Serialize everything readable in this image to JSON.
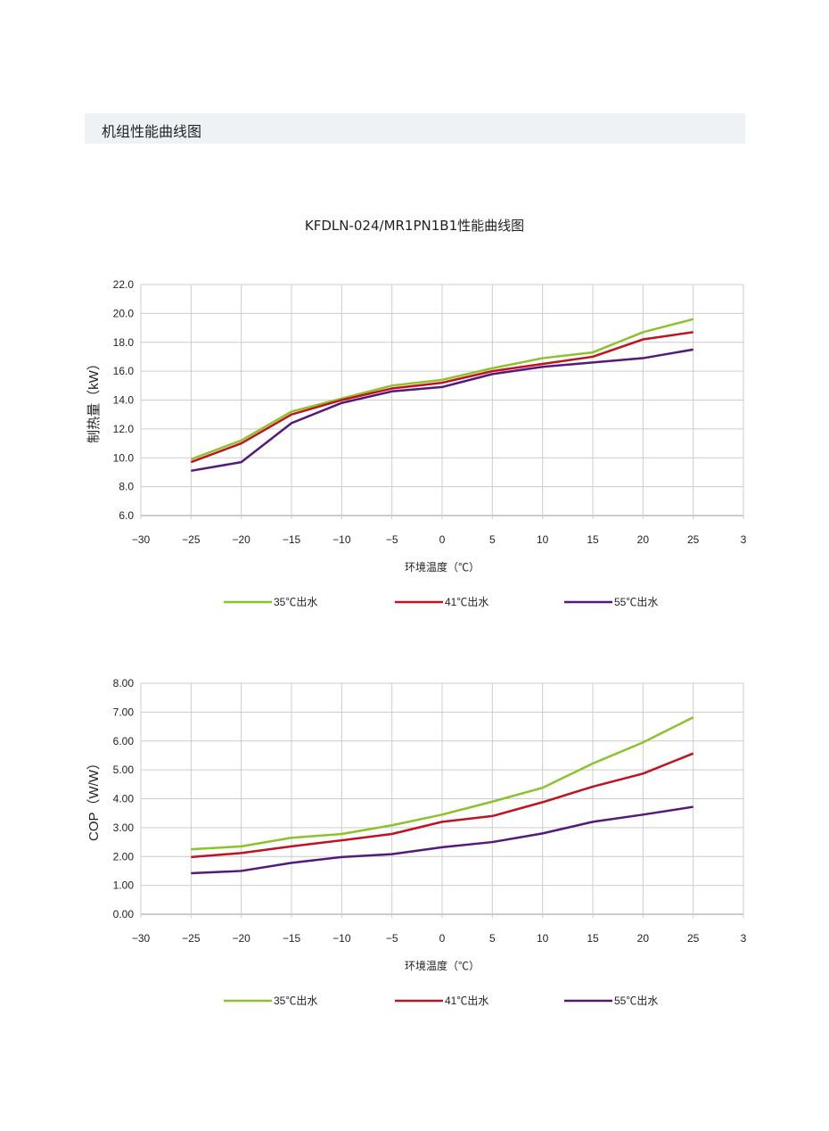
{
  "header": {
    "title": "机组性能曲线图"
  },
  "page_title": "KFDLN-024/MR1PN1B1性能曲线图",
  "chart_data": [
    {
      "type": "line",
      "ylabel": "制热量（kW）",
      "xlabel": "环境温度（℃）",
      "xlim": [
        -30,
        30
      ],
      "ylim": [
        6,
        22
      ],
      "x_tick_labels": [
        "−30",
        "−25",
        "−20",
        "−15",
        "−10",
        "−5",
        "0",
        "5",
        "10",
        "15",
        "20",
        "25",
        "3"
      ],
      "y_ticks": [
        6,
        8,
        10,
        12,
        14,
        16,
        18,
        20,
        22
      ],
      "y_tick_labels": [
        "6.0",
        "8.0",
        "10.0",
        "12.0",
        "14.0",
        "16.0",
        "18.0",
        "20.0",
        "22.0"
      ],
      "grid": true,
      "legend": "bottom",
      "x": [
        -25,
        -20,
        -15,
        -10,
        -5,
        0,
        5,
        10,
        15,
        20,
        25
      ],
      "series": [
        {
          "name": "35℃出水",
          "color": "#8cc22a",
          "values": [
            9.9,
            11.2,
            13.2,
            14.1,
            15.0,
            15.4,
            16.2,
            16.9,
            17.3,
            18.7,
            19.6
          ]
        },
        {
          "name": "41℃出水",
          "color": "#c0121f",
          "values": [
            9.7,
            11.0,
            13.0,
            14.0,
            14.8,
            15.2,
            16.0,
            16.5,
            17.0,
            18.2,
            18.7
          ]
        },
        {
          "name": "55℃出水",
          "color": "#56187a",
          "values": [
            9.1,
            9.7,
            12.4,
            13.8,
            14.6,
            14.9,
            15.8,
            16.3,
            16.6,
            16.9,
            17.5
          ]
        }
      ]
    },
    {
      "type": "line",
      "ylabel": "COP（W/W）",
      "xlabel": "环境温度（℃）",
      "xlim": [
        -30,
        30
      ],
      "ylim": [
        0,
        8
      ],
      "x_tick_labels": [
        "−30",
        "−25",
        "−20",
        "−15",
        "−10",
        "−5",
        "0",
        "5",
        "10",
        "15",
        "20",
        "25",
        "3"
      ],
      "y_ticks": [
        0,
        1,
        2,
        3,
        4,
        5,
        6,
        7,
        8
      ],
      "y_tick_labels": [
        "0.00",
        "1.00",
        "2.00",
        "3.00",
        "4.00",
        "5.00",
        "6.00",
        "7.00",
        "8.00"
      ],
      "grid": true,
      "legend": "bottom",
      "x": [
        -25,
        -20,
        -15,
        -10,
        -5,
        0,
        5,
        10,
        15,
        20,
        25
      ],
      "series": [
        {
          "name": "35℃出水",
          "color": "#8cc22a",
          "values": [
            2.25,
            2.35,
            2.65,
            2.78,
            3.08,
            3.45,
            3.9,
            4.38,
            5.22,
            5.95,
            6.82
          ]
        },
        {
          "name": "41℃出水",
          "color": "#c0121f",
          "values": [
            1.98,
            2.12,
            2.35,
            2.56,
            2.78,
            3.2,
            3.4,
            3.88,
            4.42,
            4.87,
            5.57
          ]
        },
        {
          "name": "55℃出水",
          "color": "#56187a",
          "values": [
            1.42,
            1.5,
            1.78,
            1.98,
            2.08,
            2.32,
            2.5,
            2.8,
            3.2,
            3.45,
            3.72
          ]
        }
      ]
    }
  ]
}
